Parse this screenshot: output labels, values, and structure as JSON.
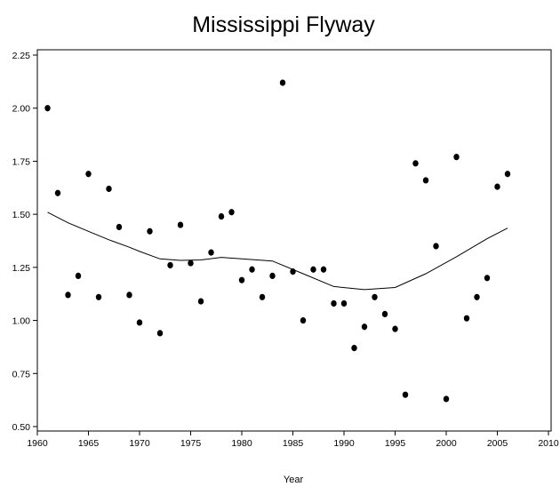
{
  "chart_data": {
    "type": "scatter",
    "title": "Mississippi Flyway",
    "xlabel": "Year",
    "ylabel": "",
    "xlim": [
      1960,
      2010
    ],
    "ylim": [
      0.5,
      2.25
    ],
    "x_ticks": [
      "1960",
      "1965",
      "1970",
      "1975",
      "1980",
      "1985",
      "1990",
      "1995",
      "2000",
      "2005",
      "2010"
    ],
    "y_ticks": [
      "0.50",
      "0.75",
      "1.00",
      "1.25",
      "1.50",
      "1.75",
      "2.00",
      "2.25"
    ],
    "grid": false,
    "points": {
      "x": [
        1961,
        1962,
        1963,
        1964,
        1965,
        1966,
        1967,
        1968,
        1969,
        1970,
        1971,
        1972,
        1973,
        1974,
        1975,
        1976,
        1977,
        1978,
        1979,
        1980,
        1981,
        1982,
        1983,
        1984,
        1985,
        1986,
        1987,
        1988,
        1989,
        1990,
        1991,
        1992,
        1993,
        1994,
        1995,
        1996,
        1997,
        1998,
        1999,
        2000,
        2001,
        2002,
        2003,
        2004,
        2005,
        2006
      ],
      "y": [
        2.0,
        1.6,
        1.12,
        1.21,
        1.69,
        1.11,
        1.62,
        1.44,
        1.12,
        0.99,
        1.42,
        0.94,
        1.26,
        1.45,
        1.27,
        1.09,
        1.32,
        1.49,
        1.51,
        1.19,
        1.24,
        1.11,
        1.21,
        2.12,
        1.23,
        1.0,
        1.24,
        1.24,
        1.08,
        1.08,
        0.87,
        0.97,
        1.11,
        1.03,
        0.96,
        0.65,
        1.74,
        1.66,
        1.35,
        0.63,
        1.77,
        1.01,
        1.11,
        1.2,
        1.63,
        1.69
      ]
    },
    "trend": {
      "x": [
        1961,
        1963,
        1965,
        1967,
        1969,
        1970,
        1972,
        1974,
        1976,
        1978,
        1980,
        1983,
        1986,
        1989,
        1992,
        1995,
        1998,
        2001,
        2004,
        2006
      ],
      "y": [
        1.51,
        1.46,
        1.42,
        1.38,
        1.345,
        1.325,
        1.29,
        1.283,
        1.285,
        1.297,
        1.29,
        1.28,
        1.22,
        1.16,
        1.145,
        1.155,
        1.22,
        1.3,
        1.385,
        1.435
      ]
    }
  }
}
